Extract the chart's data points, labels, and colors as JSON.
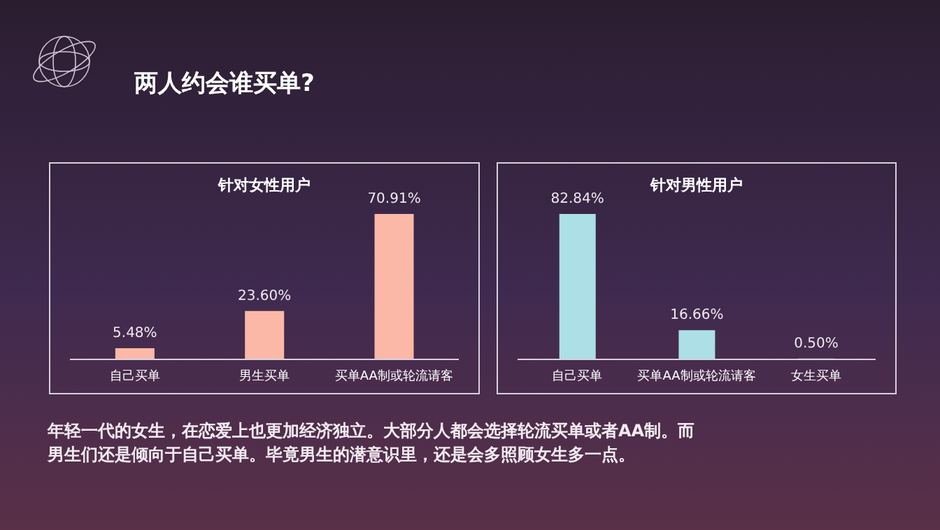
{
  "chart_data": [
    {
      "type": "other",
      "title": "两人约会谁买单?",
      "annotations": [
        "年轻一代的女生，在恋爱上也更加经济独立。大部分人都会选择轮流买单或者AA制。而男生们还是倾向于自己买单。毕竟男生的潜意识里，还是会多照顾女生多一点。"
      ]
    },
    {
      "type": "bar",
      "title": "针对女性用户",
      "categories": [
        "自己买单",
        "男生买单",
        "买单AA制或轮流请客"
      ],
      "values": [
        5.48,
        23.6,
        70.91
      ],
      "value_labels": [
        "5.48%",
        "23.60%",
        "70.91%"
      ],
      "color": "#fbb8a6"
    },
    {
      "type": "bar",
      "title": "针对男性用户",
      "categories": [
        "自己买单",
        "买单AA制或轮流请客",
        "女生买单"
      ],
      "values": [
        82.84,
        16.66,
        0.5
      ],
      "value_labels": [
        "82.84%",
        "16.66%",
        "0.50%"
      ],
      "color": "#ace0e6"
    }
  ]
}
